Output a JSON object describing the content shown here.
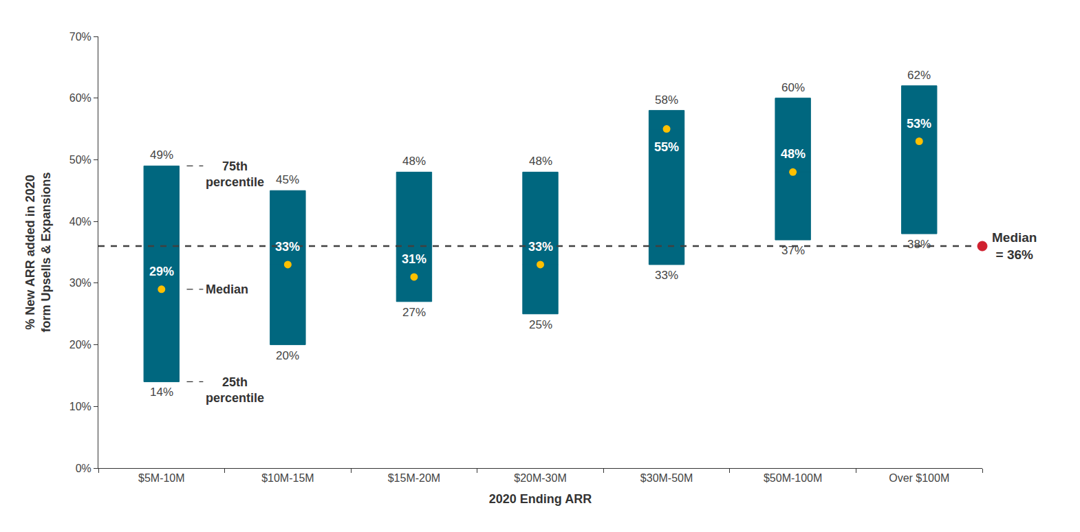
{
  "chart_data": {
    "type": "range_bar",
    "x_label": "2020 Ending ARR",
    "y_label": "% New ARR added in 2020 form Upsells & Expansions",
    "categories": [
      "$5M-10M",
      "$10M-15M",
      "$15M-20M",
      "$20M-30M",
      "$30M-50M",
      "$50M-100M",
      "Over $100M"
    ],
    "series": [
      {
        "name": "75th percentile",
        "color": "#00677f",
        "values": [
          49,
          45,
          48,
          48,
          58,
          60,
          62
        ],
        "value_labels": [
          "49%",
          "45%",
          "48%",
          "48%",
          "58%",
          "60%",
          "62%"
        ]
      },
      {
        "name": "Median",
        "color": "#ffc000",
        "marker": "circle",
        "values": [
          29,
          33,
          31,
          33,
          55,
          48,
          53
        ],
        "value_labels": [
          "29%",
          "33%",
          "31%",
          "33%",
          "55%",
          "48%",
          "53%"
        ]
      },
      {
        "name": "25th percentile",
        "color": "#00677f",
        "values": [
          14,
          20,
          27,
          25,
          33,
          37,
          38
        ],
        "value_labels": [
          "14%",
          "20%",
          "27%",
          "25%",
          "33%",
          "37%",
          "38%"
        ]
      }
    ],
    "reference_line": {
      "value": 36,
      "label": "Median = 36%",
      "color": "#d0202f",
      "line_style": "dashed"
    },
    "ylim": [
      0,
      70
    ],
    "yticks": [
      {
        "value": 0,
        "label": "0%"
      },
      {
        "value": 10,
        "label": "10%"
      },
      {
        "value": 20,
        "label": "20%"
      },
      {
        "value": 30,
        "label": "30%"
      },
      {
        "value": 40,
        "label": "40%"
      },
      {
        "value": 50,
        "label": "50%"
      },
      {
        "value": 60,
        "label": "60%"
      },
      {
        "value": 70,
        "label": "70%"
      }
    ],
    "data_labels": true,
    "grid": false
  }
}
